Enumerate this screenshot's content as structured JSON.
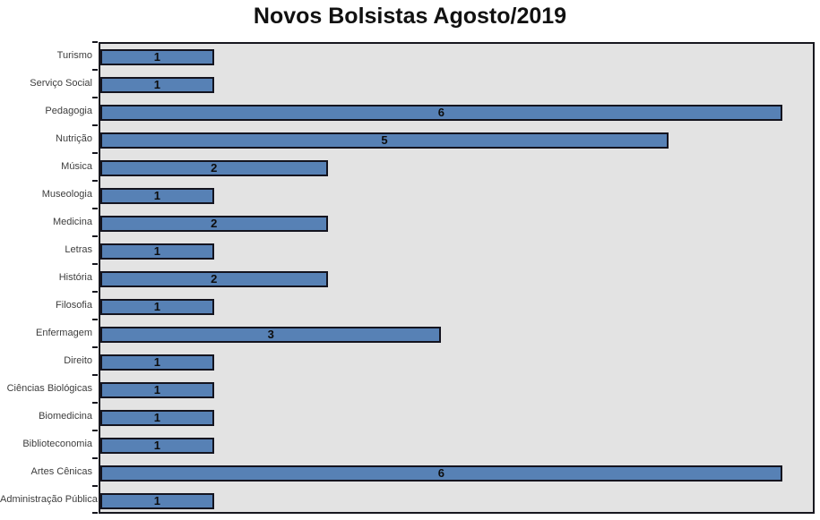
{
  "title": "Novos Bolsistas Agosto/2019",
  "chart_data": {
    "type": "bar",
    "orientation": "horizontal",
    "title": "Novos Bolsistas Agosto/2019",
    "categories": [
      "Turismo",
      "Serviço Social",
      "Pedagogia",
      "Nutrição",
      "Música",
      "Museologia",
      "Medicina",
      "Letras",
      "História",
      "Filosofia",
      "Enfermagem",
      "Direito",
      "Ciências Biológicas",
      "Biomedicina",
      "Biblioteconomia",
      "Artes Cênicas",
      "Administração Pública"
    ],
    "values": [
      1,
      1,
      6,
      5,
      2,
      1,
      2,
      1,
      2,
      1,
      3,
      1,
      1,
      1,
      1,
      6,
      1
    ],
    "xlabel": "",
    "ylabel": "",
    "xlim": [
      0,
      6.27
    ],
    "grid": false,
    "legend": false,
    "data_labels": "centered-in-bar",
    "colors": {
      "bar_fill": "#5781b5",
      "bar_border": "#14141f",
      "plot_background": "#e3e3e3",
      "plot_border": "#17171f",
      "title_text": "#111111",
      "category_text": "#3d3d3d",
      "value_text": "#0d0d0d"
    }
  }
}
